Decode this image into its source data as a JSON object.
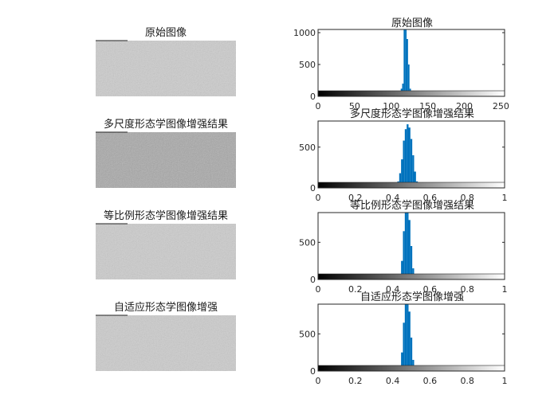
{
  "images": [
    {
      "title": "原始图像",
      "gray_level": 0.8
    },
    {
      "title": "多尺度形态学图像增强结果",
      "gray_level": 0.66
    },
    {
      "title": "等比例形态学图像增强结果",
      "gray_level": 0.8
    },
    {
      "title": "自适应形态学图像增强",
      "gray_level": 0.8
    }
  ],
  "chart_data": [
    {
      "type": "bar",
      "title": "原始图像",
      "xlim": [
        0,
        255
      ],
      "ylim": [
        0,
        1050
      ],
      "xticks": [
        0,
        50,
        100,
        150,
        200,
        250
      ],
      "xtick_labels": [
        "0",
        "50",
        "100",
        "150",
        "200",
        "250"
      ],
      "yticks": [
        0,
        500,
        1000
      ],
      "ytick_labels": [
        "0",
        "500",
        "1000"
      ],
      "bar_color": "#0072BD",
      "x": [
        108,
        110,
        112,
        114,
        116,
        118,
        120,
        122,
        124,
        126,
        128,
        130
      ],
      "values": [
        5,
        20,
        60,
        120,
        200,
        1050,
        1050,
        900,
        500,
        120,
        30,
        5
      ]
    },
    {
      "type": "bar",
      "title": "多尺度形态学图像增强结果",
      "xlim": [
        0,
        1
      ],
      "ylim": [
        0,
        820
      ],
      "xticks": [
        0,
        0.2,
        0.4,
        0.6,
        0.8,
        1
      ],
      "xtick_labels": [
        "0",
        "0.2",
        "0.4",
        "0.6",
        "0.8",
        "1"
      ],
      "yticks": [
        0,
        500
      ],
      "ytick_labels": [
        "0",
        "500"
      ],
      "bar_color": "#0072BD",
      "x": [
        0.41,
        0.42,
        0.43,
        0.44,
        0.45,
        0.46,
        0.47,
        0.48,
        0.49,
        0.5,
        0.51,
        0.52,
        0.53,
        0.54,
        0.55
      ],
      "values": [
        8,
        30,
        80,
        180,
        350,
        580,
        720,
        780,
        740,
        600,
        400,
        200,
        80,
        25,
        5
      ]
    },
    {
      "type": "bar",
      "title": "等比例形态学图像增强结果",
      "xlim": [
        0,
        1
      ],
      "ylim": [
        0,
        900
      ],
      "xticks": [
        0,
        0.2,
        0.4,
        0.6,
        0.8,
        1
      ],
      "xtick_labels": [
        "0",
        "0.2",
        "0.4",
        "0.6",
        "0.8",
        "1"
      ],
      "yticks": [
        0,
        500
      ],
      "ytick_labels": [
        "0",
        "500"
      ],
      "bar_color": "#0072BD",
      "x": [
        0.43,
        0.44,
        0.45,
        0.46,
        0.47,
        0.48,
        0.49,
        0.5,
        0.51,
        0.52,
        0.53
      ],
      "values": [
        10,
        60,
        250,
        650,
        900,
        900,
        800,
        450,
        150,
        40,
        5
      ]
    },
    {
      "type": "bar",
      "title": "自适应形态学图像增强",
      "xlim": [
        0,
        1
      ],
      "ylim": [
        0,
        900
      ],
      "xticks": [
        0,
        0.2,
        0.4,
        0.6,
        0.8,
        1
      ],
      "xtick_labels": [
        "0",
        "0.2",
        "0.4",
        "0.6",
        "0.8",
        "1"
      ],
      "yticks": [
        0,
        500
      ],
      "ytick_labels": [
        "0",
        "500"
      ],
      "bar_color": "#0072BD",
      "x": [
        0.43,
        0.44,
        0.45,
        0.46,
        0.47,
        0.48,
        0.49,
        0.5,
        0.51,
        0.52,
        0.53
      ],
      "values": [
        10,
        60,
        250,
        650,
        900,
        900,
        800,
        450,
        150,
        40,
        5
      ]
    }
  ]
}
